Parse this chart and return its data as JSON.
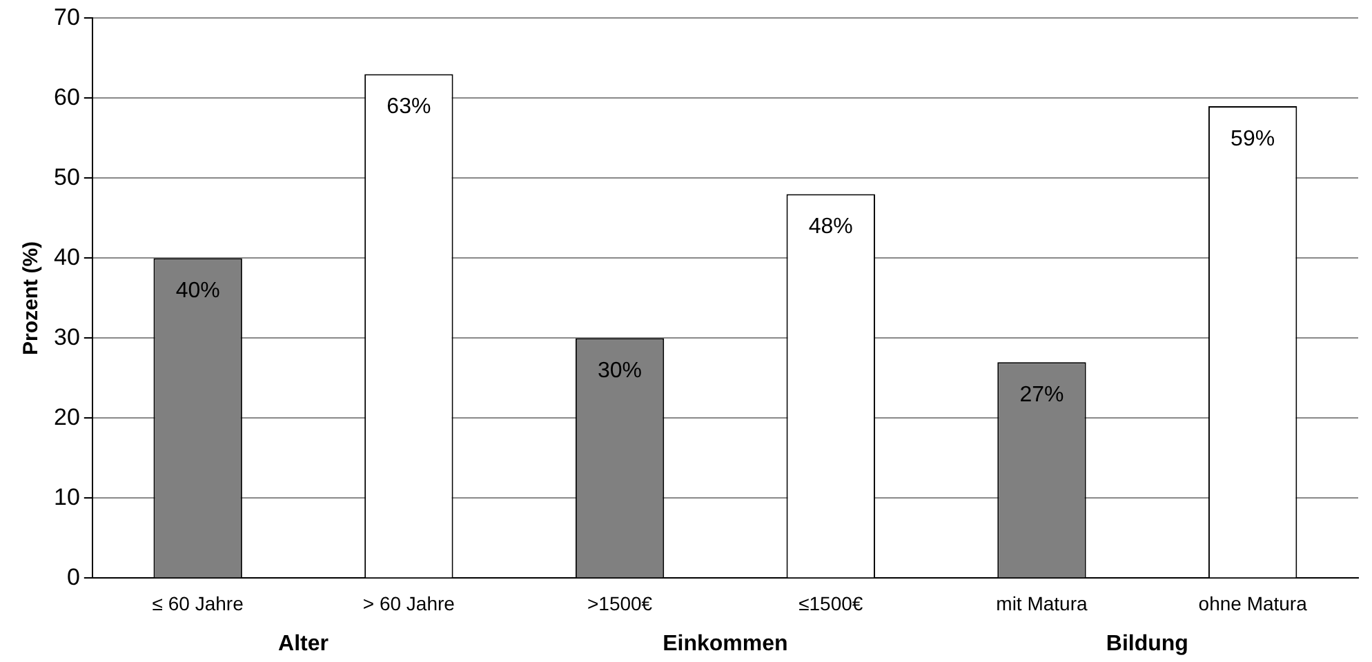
{
  "chart_data": {
    "type": "bar",
    "ylabel": "Prozent (%)",
    "categories": [
      "≤ 60 Jahre",
      "> 60 Jahre",
      ">1500€",
      "≤1500€",
      "mit Matura",
      "ohne Matura"
    ],
    "values": [
      40,
      63,
      30,
      48,
      27,
      59
    ],
    "colors": [
      "#808080",
      "#ffffff",
      "#808080",
      "#ffffff",
      "#808080",
      "#ffffff"
    ],
    "value_labels": [
      "40%",
      "63%",
      "30%",
      "48%",
      "27%",
      "59%"
    ],
    "annotations": [
      "Alter",
      "Einkommen",
      "Bildung"
    ],
    "ylim": [
      0,
      70
    ],
    "yticks": [
      0,
      10,
      20,
      30,
      40,
      50,
      60,
      70
    ],
    "grid": "y",
    "legend": false
  }
}
